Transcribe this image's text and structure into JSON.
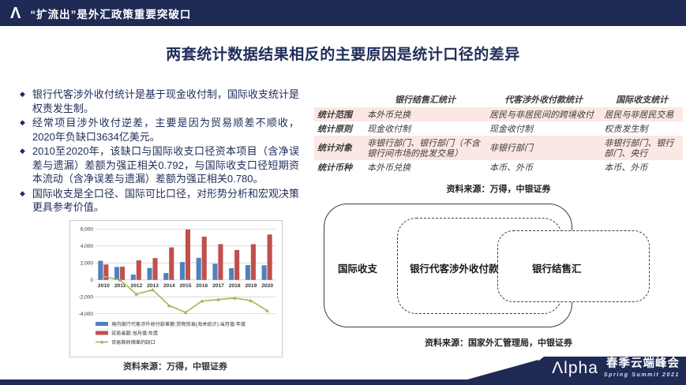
{
  "header": {
    "logo_glyph": "Λ",
    "title": "“扩流出”是外汇政策重要突破口"
  },
  "page_title": "两套统计数据结果相反的主要原因是统计口径的差异",
  "bullet_marker": "◆",
  "bullets": [
    "银行代客涉外收付统计是基于现金收付制，国际收支统计是权责发生制。",
    "经常项目涉外收付逆差，主要是因为贸易顺差不顺收，2020年负缺口3634亿美元。",
    "2010至2020年，该缺口与国际收支口径资本项目（含净误差与遗漏）差额为强正相关0.792，与国际收支口径短期资本流动（含净误差与遗漏）差额为强正相关0.780。",
    "国际收支是全口径、国际可比口径，对形势分析和宏观决策更具参考价值。"
  ],
  "chart_data": {
    "type": "bar",
    "categories": [
      "2010",
      "2011",
      "2012",
      "2013",
      "2014",
      "2015",
      "2016",
      "2017",
      "2018",
      "2019",
      "2020"
    ],
    "series": [
      {
        "name": "境内银行代客涉外收付款差额:货物贸易(海关统计):当月值:年度",
        "kind": "bar",
        "color": "#4f81bd",
        "values": [
          2250,
          1530,
          620,
          1400,
          800,
          2100,
          2600,
          1900,
          1380,
          1750,
          1720
        ]
      },
      {
        "name": "贸易差额:当月值:年度",
        "kind": "bar",
        "color": "#c0504d",
        "values": [
          1820,
          1550,
          2300,
          2570,
          3830,
          5940,
          5100,
          4220,
          3520,
          4210,
          5350
        ]
      },
      {
        "name": "贸易顺收顺差的缺口",
        "kind": "line",
        "color": "#9bbb59",
        "values": [
          430,
          -20,
          -1680,
          -1170,
          -3030,
          -3840,
          -2500,
          -2320,
          -2140,
          -2460,
          -3634
        ]
      }
    ],
    "yticks": [
      -4000,
      -2000,
      0,
      2000,
      4000,
      6000
    ],
    "ylim": [
      -4400,
      6400
    ],
    "grid": true,
    "legend_position": "bottom-left",
    "title": "",
    "xlabel": "",
    "ylabel": ""
  },
  "chart_source": "资料来源：万得，中银证券",
  "table": {
    "headers": [
      "",
      "银行结售汇统计",
      "代客涉外收付款统计",
      "国际收支统计"
    ],
    "rows": [
      {
        "label": "统计范围",
        "cells": [
          "本外币兑换",
          "居民与非居民间的跨境收付",
          "居民与非居民交易"
        ]
      },
      {
        "label": "统计原则",
        "cells": [
          "现金收付制",
          "现金收付制",
          "权责发生制"
        ]
      },
      {
        "label": "统计对象",
        "cells": [
          "非银行部门、银行部门（不含银行间市场的批发交易）",
          "非银行部门",
          "非银行部门、银行部门、央行"
        ]
      },
      {
        "label": "统计币种",
        "cells": [
          "本外币兑换",
          "本币、外币",
          "本币、外币"
        ]
      }
    ]
  },
  "table_source": "资料来源：万得，中银证券",
  "diagram": {
    "outer_label": "国际收支",
    "middle_label": "银行代客涉外收付款",
    "right_label": "银行结售汇",
    "source": "资料来源：国家外汇管理局，中银证券"
  },
  "footer": {
    "brand": "Λlpha",
    "event_cn": "春季云端峰会",
    "event_en": "Spring Summit 2021"
  },
  "colors": {
    "navy": "#1f2b55",
    "title_navy": "#1f2d5a",
    "bar_blue": "#4f81bd",
    "bar_red": "#c0504d",
    "line_green": "#9bbb59",
    "table_pink": "#fbe7e3"
  }
}
